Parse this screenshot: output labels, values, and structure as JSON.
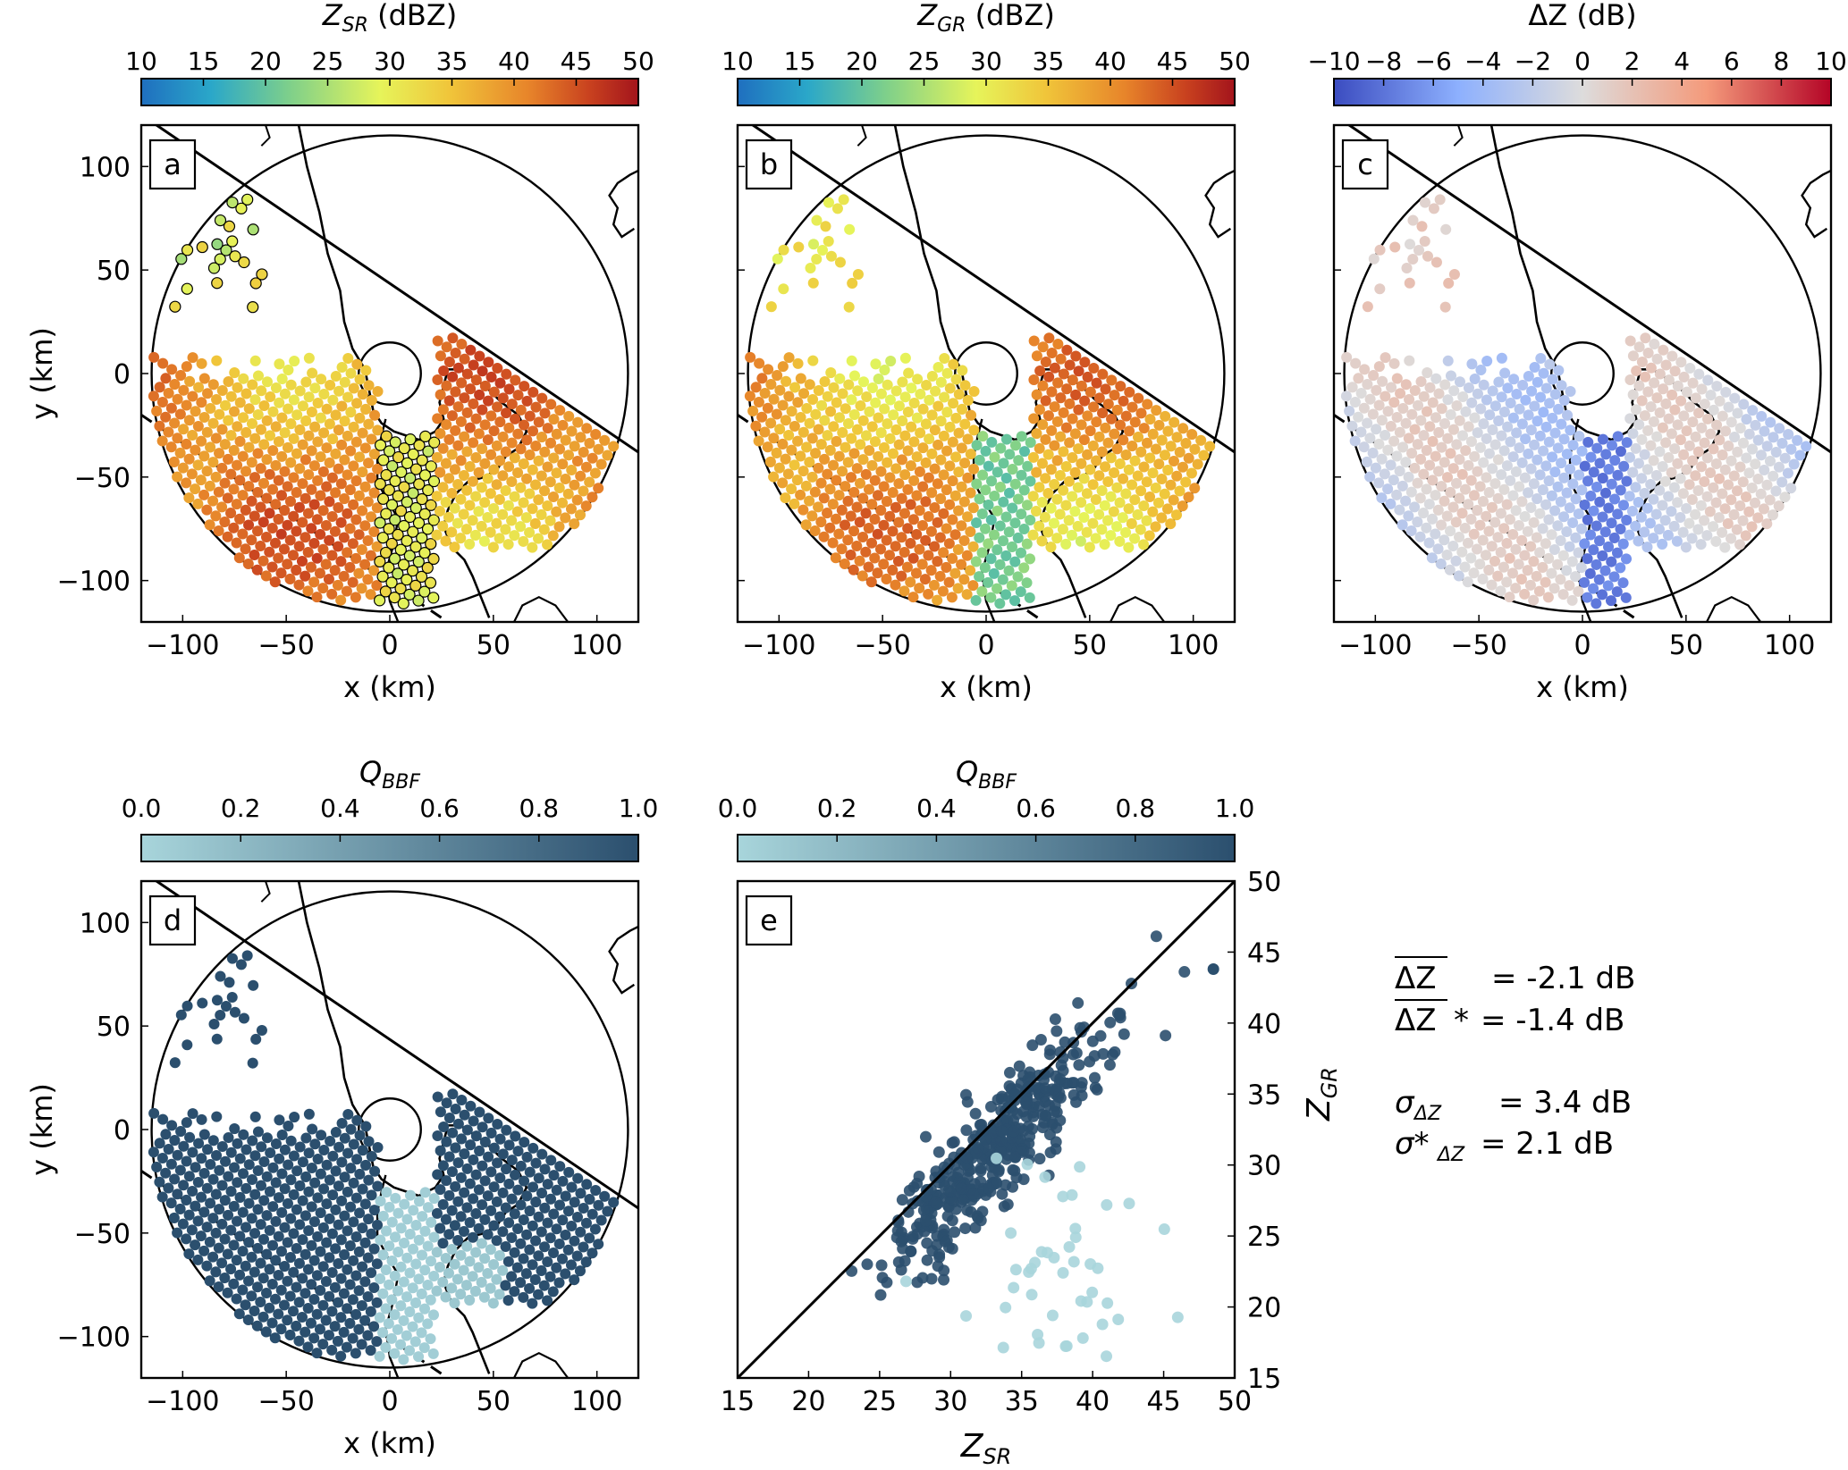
{
  "figure": {
    "stats": {
      "mean_dz_label": "ΔZ",
      "mean_dz_value": "= -2.1 dB",
      "mean_dz_star_label": "ΔZ",
      "mean_dz_star_sym": "*",
      "mean_dz_star_value": "= -1.4 dB",
      "sigma_label": "σ",
      "sigma_sub": "ΔZ",
      "sigma_value": "= 3.4 dB",
      "sigma_star_label": "σ*",
      "sigma_star_sub": "ΔZ",
      "sigma_star_value": "= 2.1 dB"
    }
  },
  "colorbars": {
    "zsr": {
      "label": "Z",
      "sub": "SR",
      "unit": "(dBZ)",
      "ticks": [
        "10",
        "15",
        "20",
        "25",
        "30",
        "35",
        "40",
        "45",
        "50"
      ],
      "colormap": "jet-like",
      "colors": [
        "#1f6fbf",
        "#2aa7c9",
        "#7fd08a",
        "#e6f45a",
        "#f0c53a",
        "#e7842a",
        "#c9421f",
        "#a3141c"
      ]
    },
    "zgr": {
      "label": "Z",
      "sub": "GR",
      "unit": "(dBZ)",
      "ticks": [
        "10",
        "15",
        "20",
        "25",
        "30",
        "35",
        "40",
        "45",
        "50"
      ],
      "colormap": "jet-like"
    },
    "dz": {
      "label": "ΔZ",
      "unit": "(dB)",
      "ticks": [
        "−10",
        "−8",
        "−6",
        "−4",
        "−2",
        "0",
        "2",
        "4",
        "6",
        "8",
        "10"
      ],
      "colormap": "coolwarm",
      "colors": [
        "#3b4cc0",
        "#8db0fe",
        "#dddcdc",
        "#f49a7b",
        "#b40426"
      ]
    },
    "qbbf_d": {
      "label": "Q",
      "sub": "BBF",
      "ticks": [
        "0.0",
        "0.2",
        "0.4",
        "0.6",
        "0.8",
        "1.0"
      ],
      "colors": [
        "#a8d5db",
        "#2b4f6e"
      ]
    },
    "qbbf_e": {
      "label": "Q",
      "sub": "BBF",
      "ticks": [
        "0.0",
        "0.2",
        "0.4",
        "0.6",
        "0.8",
        "1.0"
      ],
      "colors": [
        "#a8d5db",
        "#2b4f6e"
      ]
    }
  },
  "chart_data": [
    {
      "panel": "a",
      "type": "scatter",
      "title": "",
      "xlabel": "x (km)",
      "ylabel": "y (km)",
      "xlim": [
        -120,
        120
      ],
      "ylim": [
        -120,
        120
      ],
      "xticks": [
        "−100",
        "−50",
        "0",
        "50",
        "100"
      ],
      "yticks": [
        "100",
        "50",
        "0",
        "−50",
        "−100"
      ],
      "value_field": "Z_SR (dBZ)",
      "radar_range_km": 115,
      "inner_circle_km": 15
    },
    {
      "panel": "b",
      "type": "scatter",
      "xlabel": "x (km)",
      "ylabel": "",
      "xlim": [
        -120,
        120
      ],
      "ylim": [
        -120,
        120
      ],
      "xticks": [
        "−100",
        "−50",
        "0",
        "50",
        "100"
      ],
      "value_field": "Z_GR (dBZ)"
    },
    {
      "panel": "c",
      "type": "scatter",
      "xlabel": "x (km)",
      "ylabel": "",
      "xlim": [
        -120,
        120
      ],
      "ylim": [
        -120,
        120
      ],
      "xticks": [
        "−100",
        "−50",
        "0",
        "50",
        "100"
      ],
      "value_field": "ΔZ (dB)"
    },
    {
      "panel": "d",
      "type": "scatter",
      "xlabel": "x (km)",
      "ylabel": "y (km)",
      "xlim": [
        -120,
        120
      ],
      "ylim": [
        -120,
        120
      ],
      "xticks": [
        "−100",
        "−50",
        "0",
        "50",
        "100"
      ],
      "yticks": [
        "100",
        "50",
        "0",
        "−50",
        "−100"
      ],
      "value_field": "Q_BBF"
    },
    {
      "panel": "e",
      "type": "scatter",
      "xlabel": "Z_SR",
      "ylabel": "Z_GR",
      "xlim": [
        15,
        50
      ],
      "ylim": [
        15,
        50
      ],
      "xticks": [
        "15",
        "20",
        "25",
        "30",
        "35",
        "40",
        "45",
        "50"
      ],
      "yticks": [
        "50",
        "45",
        "40",
        "35",
        "30",
        "25",
        "20",
        "15"
      ],
      "one_to_one_line": true,
      "clusters": [
        {
          "name": "",
          "center": [
            33,
            30
          ],
          "spread": [
            5.5,
            4.2
          ],
          "q": 1.0,
          "n": 420
        },
        {
          "name": "",
          "center": [
            37,
            22
          ],
          "spread": [
            3.5,
            3.2
          ],
          "q": 0.0,
          "n": 45
        }
      ]
    }
  ],
  "panel_labels": [
    "a",
    "b",
    "c",
    "d",
    "e"
  ]
}
